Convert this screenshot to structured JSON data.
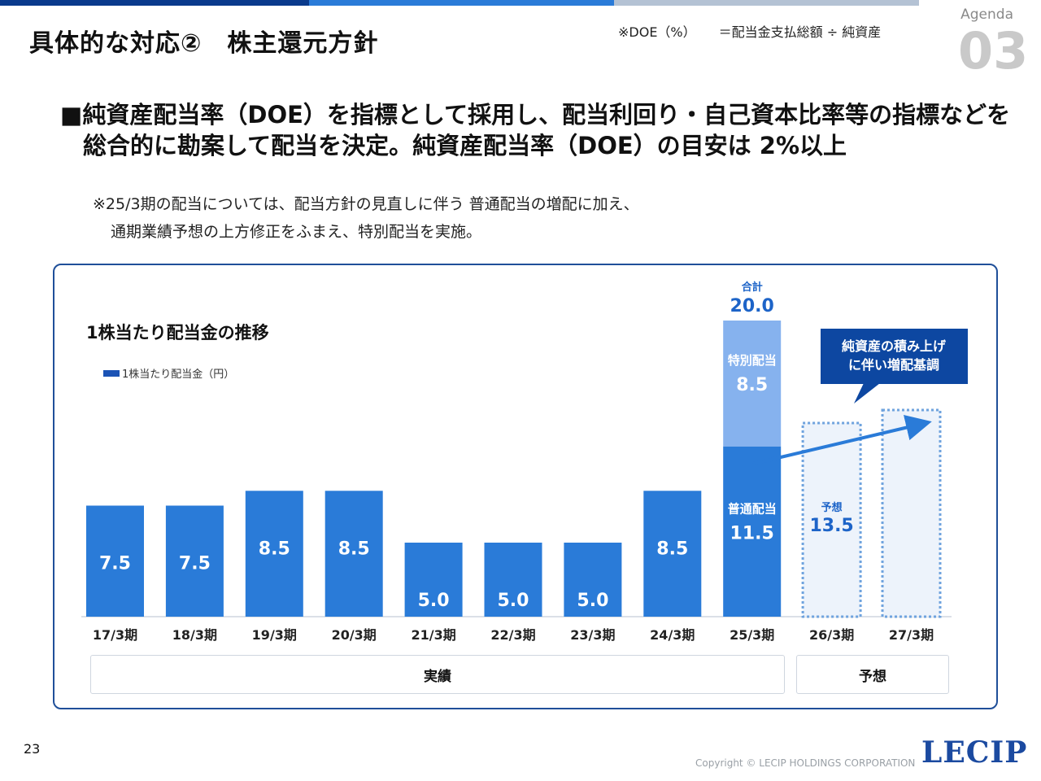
{
  "header": {
    "title": "具体的な対応②　株主還元方針",
    "doe_label": "※DOE（%）",
    "doe_formula": "＝配当金支払総額 ÷ 純資産",
    "agenda_label": "Agenda",
    "agenda_number": "03"
  },
  "headline": {
    "line1": "■純資産配当率（DOE）を指標として採用し、配当利回り・自己資本比率等の指標などを",
    "line2": "総合的に勘案して配当を決定。純資産配当率（DOE）の目安は 2%以上"
  },
  "note": {
    "line1": "※25/3期の配当については、配当方針の見直しに伴う 普通配当の増配に加え、",
    "line2": "通期業績予想の上方修正をふまえ、特別配当を実施。"
  },
  "chart_data": {
    "type": "bar",
    "title": "1株当たり配当金の推移",
    "legend": "1株当たり配当金（円）",
    "categories": [
      "17/3期",
      "18/3期",
      "19/3期",
      "20/3期",
      "21/3期",
      "22/3期",
      "23/3期",
      "24/3期",
      "25/3期",
      "26/3期",
      "27/3期"
    ],
    "series": [
      {
        "name": "普通配当",
        "values": [
          7.5,
          7.5,
          8.5,
          8.5,
          5.0,
          5.0,
          5.0,
          8.5,
          11.5,
          null,
          null
        ]
      },
      {
        "name": "特別配当",
        "values": [
          null,
          null,
          null,
          null,
          null,
          null,
          null,
          null,
          8.5,
          null,
          null
        ]
      }
    ],
    "forecast": {
      "categories": [
        "26/3期",
        "27/3期"
      ],
      "label": "予想",
      "values": [
        13.5,
        null
      ]
    },
    "total_label": "合計",
    "total_value": 20.0,
    "annotation": "純資産の積み上げ\nに伴い増配基調",
    "periods": [
      {
        "label": "実績"
      },
      {
        "label": "予想"
      }
    ],
    "colors": {
      "actual": "#2a7bd8",
      "special": "#86b2ee",
      "forecast_fill": "#edf3fb",
      "forecast_border": "#6fa3de",
      "annotation_bg": "#0d47a1",
      "total_text": "#1d64c8"
    }
  },
  "footer": {
    "page_number": "23",
    "copyright": "Copyright © LECIP  HOLDINGS CORPORATION",
    "logo_text": "LECIP"
  }
}
